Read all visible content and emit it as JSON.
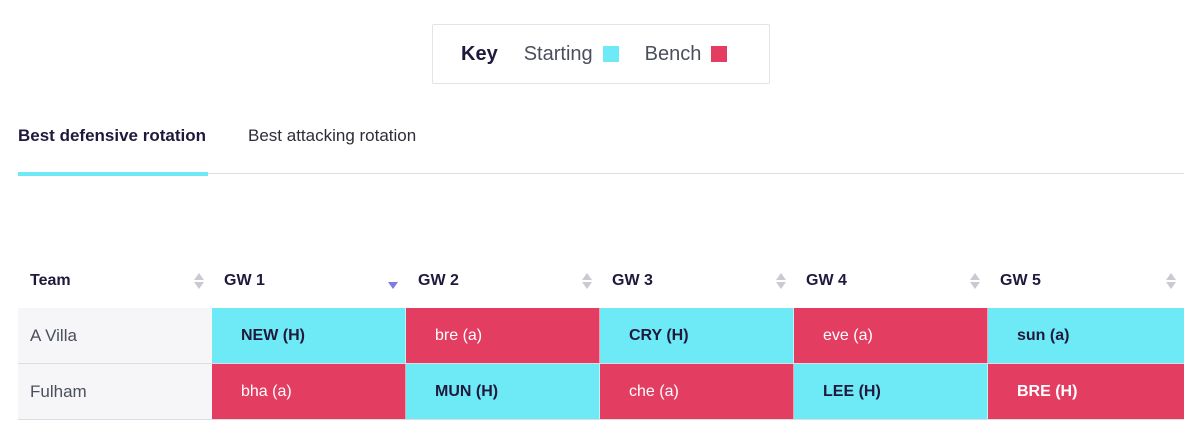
{
  "key": {
    "title": "Key",
    "items": [
      {
        "label": "Starting",
        "color": "#6eeaf6"
      },
      {
        "label": "Bench",
        "color": "#e33d61"
      }
    ]
  },
  "tabs": [
    {
      "label": "Best defensive rotation",
      "active": true
    },
    {
      "label": "Best attacking rotation",
      "active": false
    }
  ],
  "table": {
    "columns": [
      "Team",
      "GW 1",
      "GW 2",
      "GW 3",
      "GW 4",
      "GW 5"
    ],
    "sorted_column": "GW 1",
    "rows": [
      {
        "team": "A Villa",
        "fixtures": [
          {
            "text": "NEW (H)",
            "status": "start"
          },
          {
            "text": "bre (a)",
            "status": "bench"
          },
          {
            "text": "CRY (H)",
            "status": "start"
          },
          {
            "text": "eve (a)",
            "status": "bench"
          },
          {
            "text": "sun (a)",
            "status": "start"
          }
        ]
      },
      {
        "team": "Fulham",
        "fixtures": [
          {
            "text": "bha (a)",
            "status": "bench"
          },
          {
            "text": "MUN (H)",
            "status": "start"
          },
          {
            "text": "che (a)",
            "status": "bench"
          },
          {
            "text": "LEE (H)",
            "status": "start"
          },
          {
            "text": "BRE (H)",
            "status": "bench"
          }
        ]
      }
    ]
  }
}
